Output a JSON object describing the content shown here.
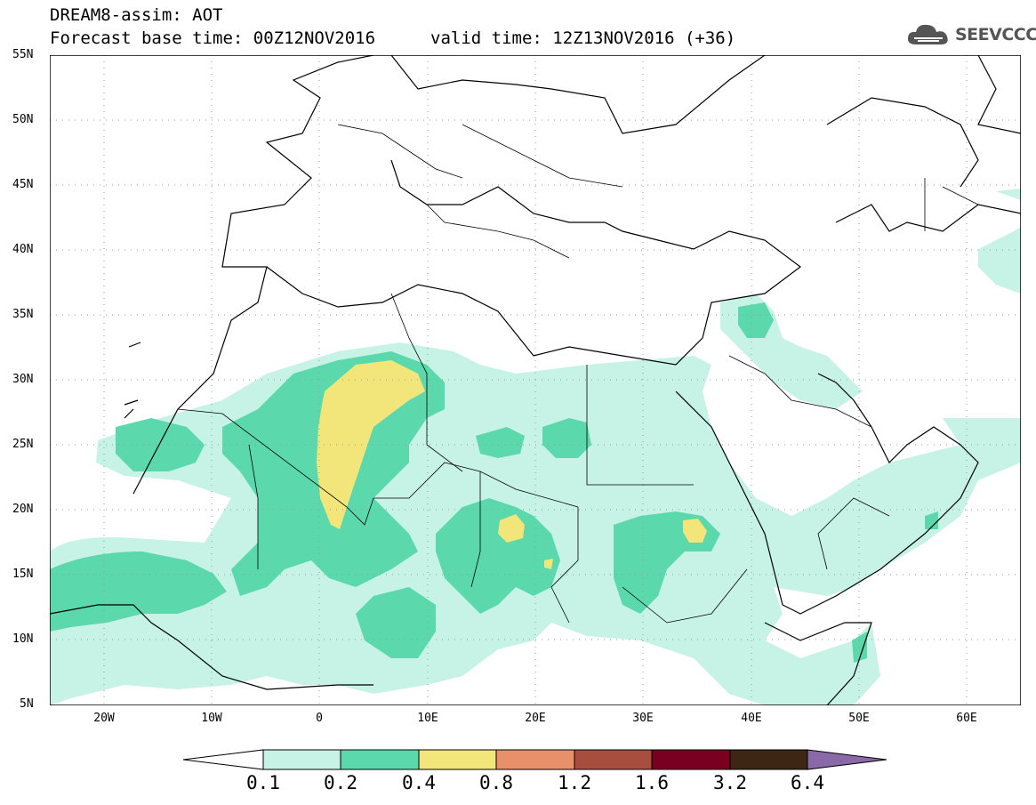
{
  "header": {
    "title_line1": "DREAM8-assim: AOT",
    "title_line2": "Forecast base time: 00Z12NOV2016",
    "valid_time": "valid time: 12Z13NOV2016 (+36)",
    "logo_text": "SEEVCCC",
    "logo_icon": "cloud-icon"
  },
  "map": {
    "lat_labels": [
      "55N",
      "50N",
      "45N",
      "40N",
      "35N",
      "30N",
      "25N",
      "20N",
      "15N",
      "10N",
      "5N"
    ],
    "lon_labels": [
      "20W",
      "10W",
      "0",
      "10E",
      "20E",
      "30E",
      "40E",
      "50E",
      "60E"
    ],
    "lon_range": [
      -25,
      65
    ],
    "lat_range": [
      5,
      55
    ]
  },
  "legend": {
    "levels": [
      "0.1",
      "0.2",
      "0.4",
      "0.8",
      "1.2",
      "1.6",
      "3.2",
      "6.4"
    ],
    "colors": [
      "#ffffff",
      "#c7f2e6",
      "#5bd9ad",
      "#f2e57a",
      "#e8906a",
      "#a84e3f",
      "#7a0021",
      "#3d2614",
      "#8a69a8"
    ]
  }
}
